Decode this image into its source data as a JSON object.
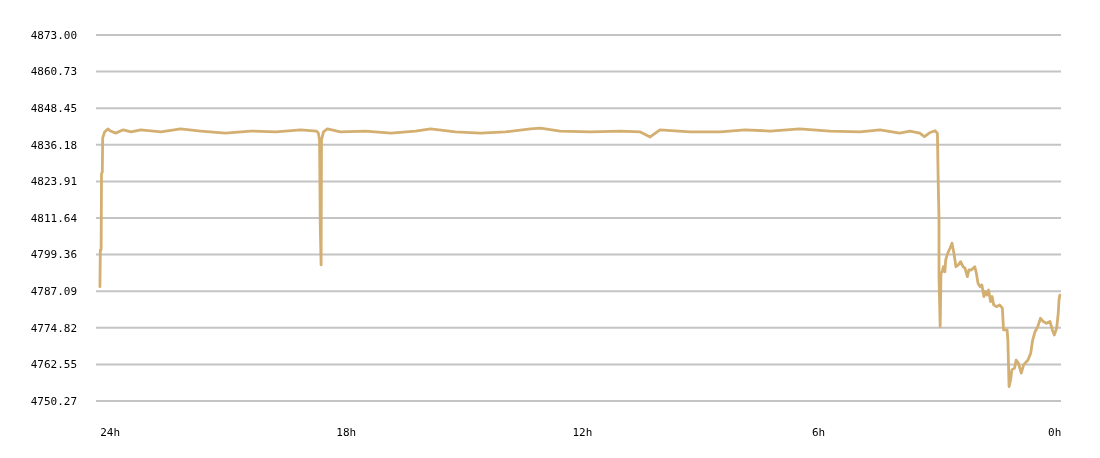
{
  "chart_data": {
    "type": "line",
    "grid": "y",
    "marker": "none",
    "line_style": "solid",
    "xlim": [
      24.36,
      -0.16
    ],
    "xticks": [
      {
        "value": 24,
        "label": "24h"
      },
      {
        "value": 18,
        "label": "18h"
      },
      {
        "value": 12,
        "label": "12h"
      },
      {
        "value": 6,
        "label": "6h"
      },
      {
        "value": 0,
        "label": "0h"
      }
    ],
    "ylim": [
      4750.27,
      4873.0
    ],
    "yticks": [
      4750.27,
      4762.55,
      4774.82,
      4787.09,
      4799.36,
      4811.64,
      4823.91,
      4836.18,
      4848.45,
      4860.73,
      {
        "value": 4873,
        "label": "4873.00"
      }
    ],
    "series": [
      {
        "color": "#d4af72",
        "x": [
          24.26,
          24.25,
          24.23,
          24.22,
          24.2,
          24.19,
          24.14,
          24.06,
          23.99,
          23.86,
          23.67,
          23.47,
          23.22,
          22.71,
          22.21,
          21.7,
          21.07,
          20.43,
          19.79,
          19.16,
          18.76,
          18.71,
          18.68,
          18.66,
          18.64,
          18.63,
          18.58,
          18.48,
          18.15,
          17.51,
          16.87,
          16.24,
          15.86,
          15.23,
          14.59,
          13.96,
          13.32,
          13.07,
          12.57,
          11.8,
          11.04,
          10.53,
          10.28,
          10.03,
          9.27,
          8.5,
          7.87,
          7.23,
          6.48,
          5.71,
          4.95,
          4.44,
          3.94,
          3.68,
          3.43,
          3.31,
          3.18,
          3.04,
          2.98,
          2.96,
          2.94,
          2.94,
          2.91,
          2.89,
          2.86,
          2.83,
          2.79,
          2.77,
          2.72,
          2.66,
          2.61,
          2.56,
          2.51,
          2.45,
          2.39,
          2.33,
          2.28,
          2.22,
          2.18,
          2.12,
          2.03,
          1.99,
          1.95,
          1.9,
          1.85,
          1.8,
          1.76,
          1.72,
          1.68,
          1.63,
          1.59,
          1.55,
          1.48,
          1.4,
          1.33,
          1.3,
          1.21,
          1.19,
          1.16,
          1.12,
          1.09,
          1.02,
          0.98,
          0.92,
          0.85,
          0.79,
          0.68,
          0.61,
          0.56,
          0.5,
          0.43,
          0.36,
          0.29,
          0.21,
          0.12,
          0.06,
          0.01,
          -0.05,
          -0.09,
          -0.11,
          -0.13
        ],
        "values": [
          4788.6,
          4800.9,
          4801.0,
          4826.5,
          4827.0,
          4838.5,
          4840.5,
          4841.5,
          4840.8,
          4840.1,
          4841.2,
          4840.5,
          4841.2,
          4840.5,
          4841.5,
          4840.8,
          4840.1,
          4840.8,
          4840.5,
          4841.2,
          4840.8,
          4840.1,
          4837.8,
          4807.6,
          4795.9,
          4837.8,
          4840.5,
          4841.5,
          4840.5,
          4840.8,
          4840.1,
          4840.8,
          4841.5,
          4840.5,
          4840.1,
          4840.5,
          4841.5,
          4841.8,
          4840.8,
          4840.5,
          4840.8,
          4840.5,
          4838.8,
          4841.2,
          4840.5,
          4840.5,
          4841.2,
          4840.8,
          4841.5,
          4840.8,
          4840.5,
          4841.2,
          4840.1,
          4840.8,
          4840.1,
          4838.9,
          4840.2,
          4840.9,
          4840.0,
          4823.8,
          4811.0,
          4792.0,
          4775.2,
          4793.1,
          4793.6,
          4795.3,
          4793.6,
          4797.6,
          4799.8,
          4801.5,
          4803.2,
          4799.8,
          4795.3,
          4795.9,
          4797.0,
          4795.3,
          4794.8,
          4792.0,
          4794.2,
          4794.2,
          4795.3,
          4793.1,
          4789.8,
          4788.6,
          4789.2,
          4785.3,
          4787.0,
          4785.8,
          4787.5,
          4783.6,
          4785.3,
          4782.5,
          4781.9,
          4782.5,
          4781.4,
          4774.1,
          4774.1,
          4770.7,
          4755.1,
          4757.3,
          4760.7,
          4761.3,
          4764.0,
          4762.9,
          4759.6,
          4762.4,
          4764.0,
          4766.3,
          4770.7,
          4773.5,
          4775.2,
          4778.0,
          4776.9,
          4776.3,
          4776.9,
          4774.1,
          4772.4,
          4774.7,
          4779.7,
          4784.2,
          4785.8
        ]
      }
    ]
  }
}
